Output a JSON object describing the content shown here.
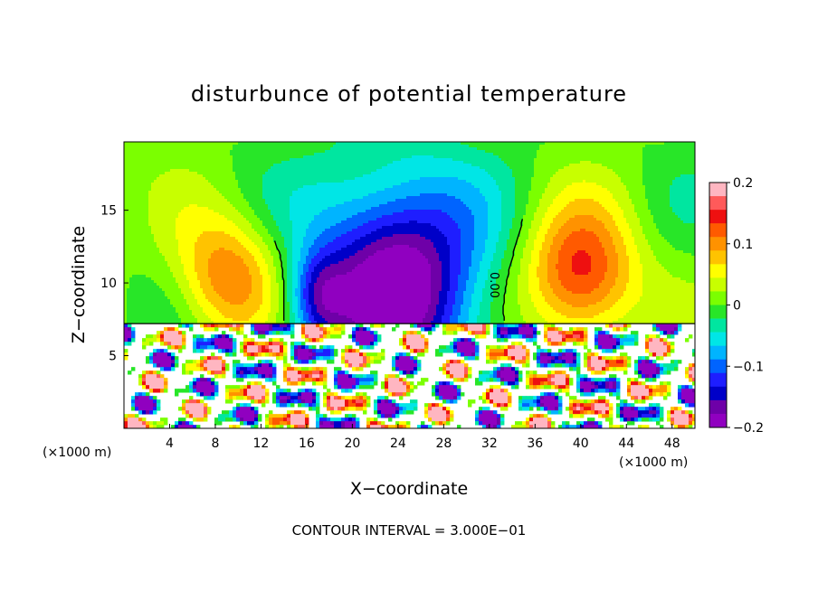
{
  "chart_data": {
    "type": "heatmap",
    "title": "disturbunce of potential temperature",
    "xlabel": "X−coordinate",
    "ylabel": "Z−coordinate",
    "x_unit_left": "(×1000 m)",
    "x_unit_right": "(×1000 m)",
    "footer": "CONTOUR INTERVAL = 3.000E−01",
    "contour_label": "0.00",
    "xlim": [
      0,
      50
    ],
    "ylim": [
      0,
      19.7
    ],
    "x_ticks": [
      4,
      8,
      12,
      16,
      20,
      24,
      28,
      32,
      36,
      40,
      44,
      48
    ],
    "y_ticks": [
      5,
      10,
      15
    ],
    "colorbar": {
      "range": [
        -0.2,
        0.2
      ],
      "tick_values": [
        0.2,
        0.1,
        0,
        -0.1,
        -0.2
      ],
      "tick_labels": [
        "0.2",
        "0.1",
        "0",
        "−0.1",
        "−0.2"
      ],
      "colors": [
        "#ffb6c1",
        "#ff5a5a",
        "#ee1010",
        "#ff5a00",
        "#ff9200",
        "#ffc300",
        "#ffff00",
        "#c8ff00",
        "#7bff00",
        "#28e628",
        "#00e6a0",
        "#00e6e6",
        "#00b4ff",
        "#0064ff",
        "#1e1eff",
        "#0000c8",
        "#6e00a8",
        "#9000c0"
      ]
    },
    "features": [
      {
        "name": "warm core left",
        "x": 9,
        "z": 10.5,
        "value": 0.1
      },
      {
        "name": "cold core centre",
        "x": 24,
        "z": 10,
        "value": -0.2
      },
      {
        "name": "warm core right",
        "x": 40,
        "z": 10.5,
        "value": 0.15
      },
      {
        "name": "inversion layer top",
        "z": 7.2
      }
    ]
  }
}
